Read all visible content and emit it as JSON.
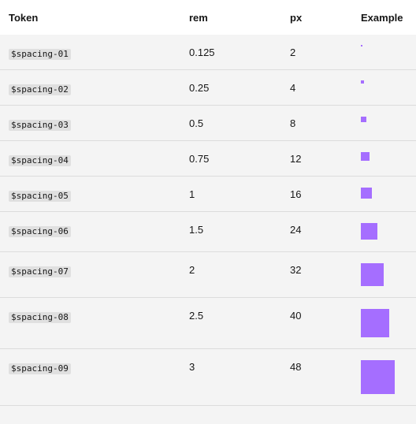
{
  "header": {
    "token": "Token",
    "rem": "rem",
    "px": "px",
    "example": "Example"
  },
  "colors": {
    "swatch": "#a56eff",
    "row_bg": "#f4f4f4",
    "header_bg": "#ffffff"
  },
  "rows": [
    {
      "token": "$spacing-01",
      "rem": "0.125",
      "px": "2"
    },
    {
      "token": "$spacing-02",
      "rem": "0.25",
      "px": "4"
    },
    {
      "token": "$spacing-03",
      "rem": "0.5",
      "px": "8"
    },
    {
      "token": "$spacing-04",
      "rem": "0.75",
      "px": "12"
    },
    {
      "token": "$spacing-05",
      "rem": "1",
      "px": "16"
    },
    {
      "token": "$spacing-06",
      "rem": "1.5",
      "px": "24"
    },
    {
      "token": "$spacing-07",
      "rem": "2",
      "px": "32"
    },
    {
      "token": "$spacing-08",
      "rem": "2.5",
      "px": "40"
    },
    {
      "token": "$spacing-09",
      "rem": "3",
      "px": "48"
    }
  ]
}
